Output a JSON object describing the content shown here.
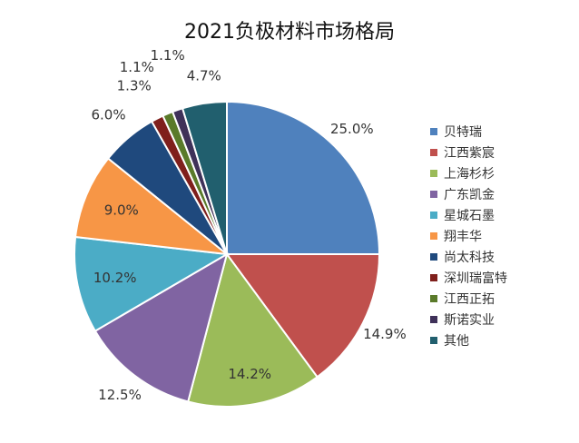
{
  "chart_data": {
    "type": "pie",
    "title": "2021负极材料市场格局",
    "legend_position": "right",
    "slices": [
      {
        "label": "贝特瑞",
        "value": 25.0,
        "value_label": "25.0%",
        "color": "#4f81bd"
      },
      {
        "label": "江西紫宸",
        "value": 14.9,
        "value_label": "14.9%",
        "color": "#c0504d"
      },
      {
        "label": "上海杉杉",
        "value": 14.2,
        "value_label": "14.2%",
        "color": "#9bbb59"
      },
      {
        "label": "广东凯金",
        "value": 12.5,
        "value_label": "12.5%",
        "color": "#8064a2"
      },
      {
        "label": "星城石墨",
        "value": 10.2,
        "value_label": "10.2%",
        "color": "#4bacc6"
      },
      {
        "label": "翔丰华",
        "value": 9.0,
        "value_label": "9.0%",
        "color": "#f79646"
      },
      {
        "label": "尚太科技",
        "value": 6.0,
        "value_label": "6.0%",
        "color": "#1f497d"
      },
      {
        "label": "深圳瑞富特",
        "value": 1.3,
        "value_label": "1.3%",
        "color": "#7f1f1c"
      },
      {
        "label": "江西正拓",
        "value": 1.1,
        "value_label": "1.1%",
        "color": "#5a7a2a"
      },
      {
        "label": "斯诺实业",
        "value": 1.1,
        "value_label": "1.1%",
        "color": "#3f3159"
      },
      {
        "label": "其他",
        "value": 4.7,
        "value_label": "4.7%",
        "color": "#215f6e"
      }
    ]
  }
}
